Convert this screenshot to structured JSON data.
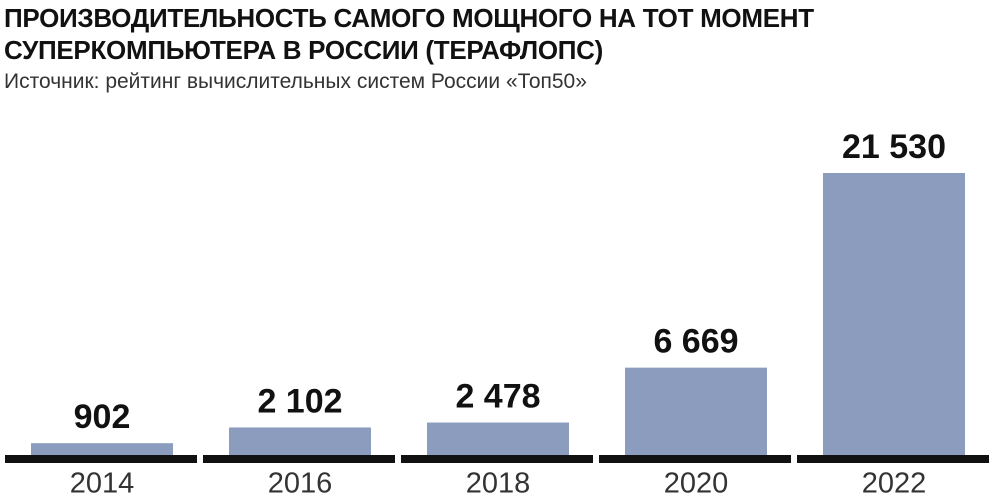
{
  "chart_data": {
    "type": "bar",
    "title": "ПРОИЗВОДИТЕЛЬНОСТЬ САМОГО МОЩНОГО НА ТОТ МОМЕНТ СУПЕРКОМПЬЮТЕРА В РОССИИ (ТЕРАФЛОПС)",
    "subtitle": "Источник: рейтинг вычислительных систем России «Топ50»",
    "categories": [
      "2014",
      "2016",
      "2018",
      "2020",
      "2022"
    ],
    "values": [
      902,
      2102,
      2478,
      6669,
      21530
    ],
    "value_labels": [
      "902",
      "2 102",
      "2 478",
      "6 669",
      "21 530"
    ],
    "color": "#8b9cbe"
  }
}
